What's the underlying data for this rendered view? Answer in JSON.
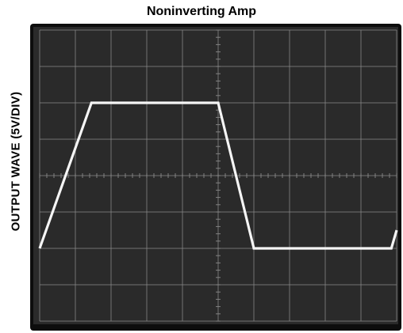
{
  "chart_data": {
    "type": "line",
    "title": "Noninverting Amp",
    "xlabel": "",
    "ylabel": "OUTPUT WAVE (5V/DIV)",
    "x_divisions": 10,
    "y_divisions": 8,
    "xlim": [
      0,
      10
    ],
    "ylim": [
      -4,
      4
    ],
    "grid": true,
    "series": [
      {
        "name": "",
        "x": [
          0.0,
          1.45,
          5.0,
          6.0,
          9.85,
          10.0
        ],
        "y": [
          -2.0,
          2.0,
          2.0,
          -2.0,
          -2.0,
          -1.5
        ]
      }
    ]
  },
  "colors": {
    "screen": "#2a2a2a",
    "grid": "#8a8a8a",
    "trace": "#f5f5f5",
    "bezel": "#0d0d0d"
  }
}
